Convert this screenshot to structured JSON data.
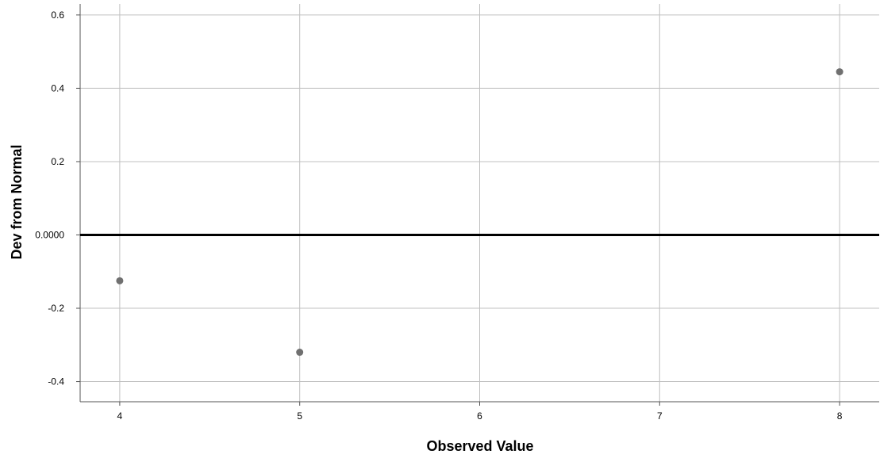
{
  "chart_data": {
    "type": "scatter",
    "title": "",
    "xlabel": "Observed Value",
    "ylabel": "Dev from Normal",
    "xlim": [
      3.78,
      8.22
    ],
    "ylim": [
      -0.455,
      0.63
    ],
    "xticks": [
      {
        "value": 4,
        "label": "4"
      },
      {
        "value": 5,
        "label": "5"
      },
      {
        "value": 6,
        "label": "6"
      },
      {
        "value": 7,
        "label": "7"
      },
      {
        "value": 8,
        "label": "8"
      }
    ],
    "yticks": [
      {
        "value": 0.6,
        "label": "0.6"
      },
      {
        "value": 0.4,
        "label": "0.4"
      },
      {
        "value": 0.2,
        "label": "0.2"
      },
      {
        "value": 0.0,
        "label": "0.0000"
      },
      {
        "value": -0.2,
        "label": "-0.2"
      },
      {
        "value": -0.4,
        "label": "-0.4"
      }
    ],
    "reference_line": {
      "y": 0.0
    },
    "points": [
      {
        "x": 4,
        "y": -0.125
      },
      {
        "x": 5,
        "y": -0.32
      },
      {
        "x": 8,
        "y": 0.445
      }
    ],
    "grid": true,
    "legend": "none",
    "colors": {
      "points": "#707070",
      "grid": "#c0c0c0",
      "reference": "#000000",
      "axis": "#555555"
    }
  }
}
